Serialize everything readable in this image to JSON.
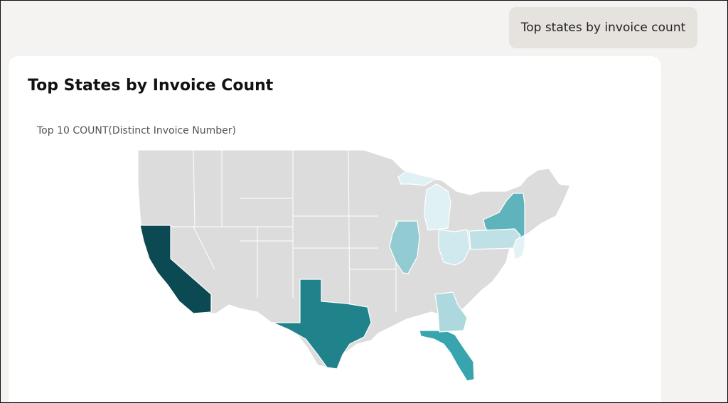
{
  "chat": {
    "user_message": "Top states by invoice count"
  },
  "card": {
    "title": "Top States by Invoice Count",
    "subtitle": "Top 10 COUNT(Distinct Invoice Number)"
  },
  "colors": {
    "base": "#dcdcdc",
    "CA": "#0b4a52",
    "TX": "#20828b",
    "FL": "#38a5ae",
    "NY": "#5eb3bd",
    "IL": "#93cbd3",
    "GA": "#acd8de",
    "PA": "#bfe1e6",
    "OH": "#cfe9ee",
    "MI": "#dff1f5",
    "NJ": "#e2f3f6"
  },
  "icons": {
    "map": "us-map"
  }
}
